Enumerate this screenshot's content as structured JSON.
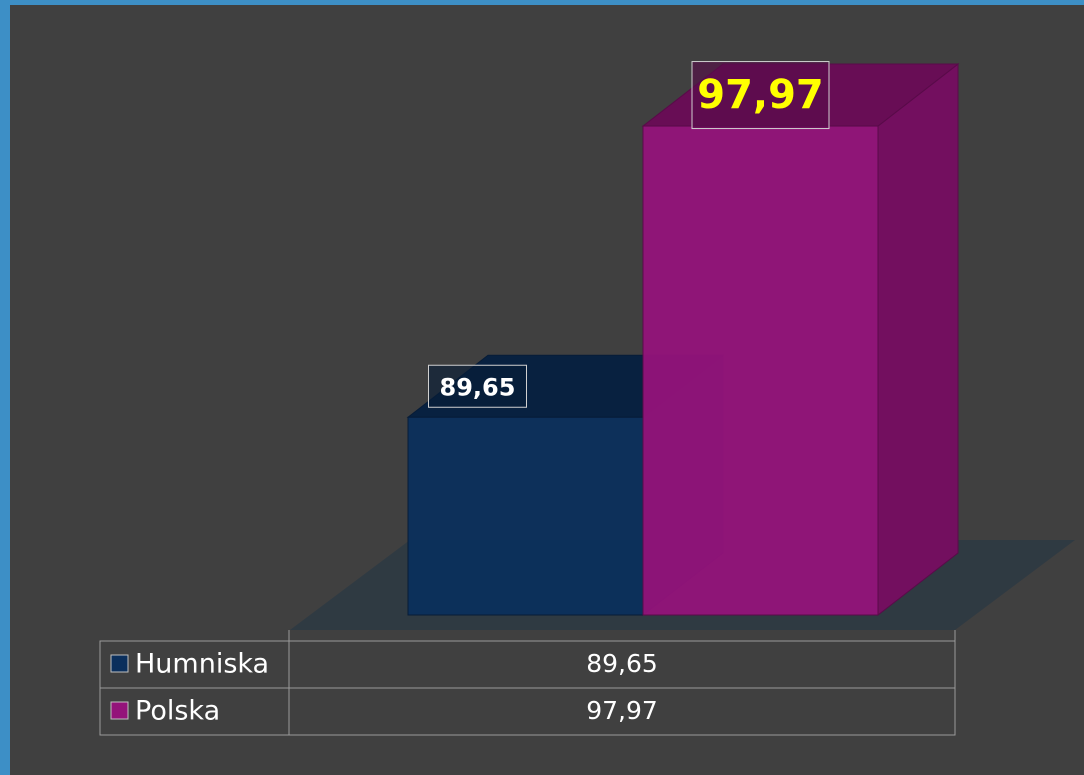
{
  "chart_data": {
    "type": "bar3d",
    "series": [
      {
        "name": "Humniska",
        "color": "#0b2f5c",
        "values": [
          89.65
        ],
        "value_labels": [
          "89,65"
        ]
      },
      {
        "name": "Polska",
        "color": "#94137a",
        "values": [
          97.97
        ],
        "value_labels": [
          "97,97"
        ]
      }
    ],
    "ylim": [
      84,
      99
    ]
  }
}
